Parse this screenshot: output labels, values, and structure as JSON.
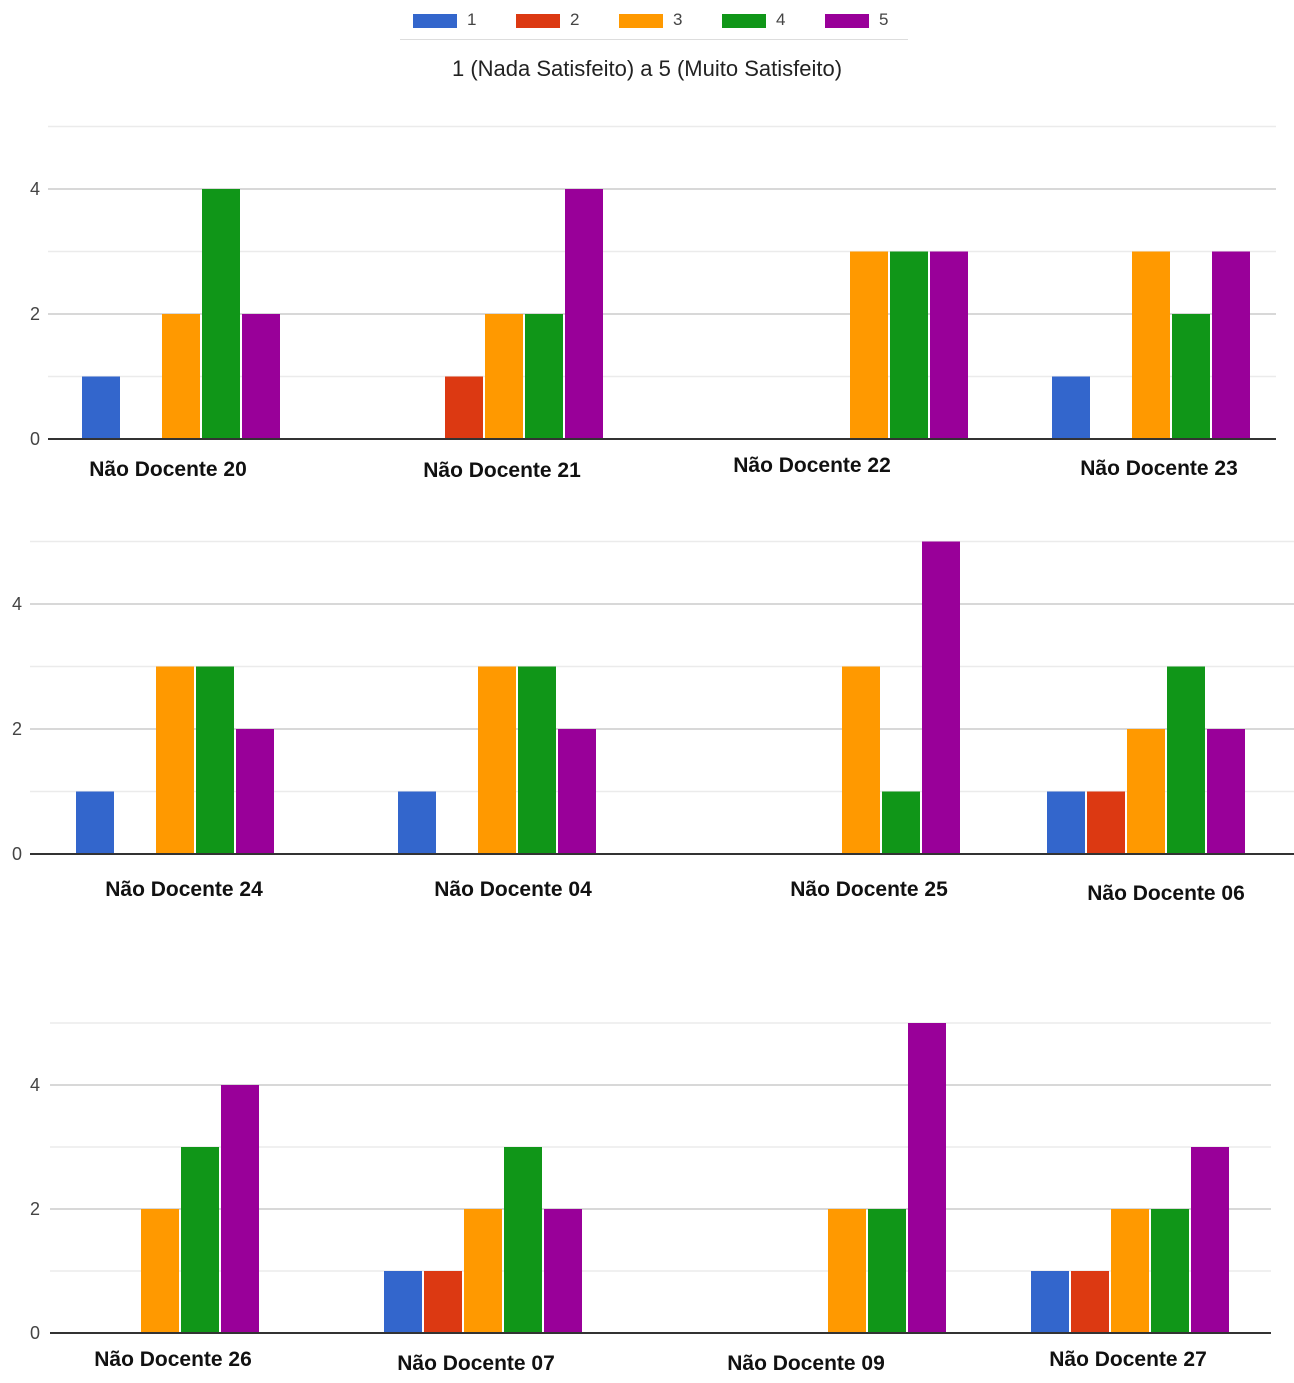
{
  "legend": {
    "items": [
      {
        "label": "1",
        "color": "#3366cc"
      },
      {
        "label": "2",
        "color": "#dc3912"
      },
      {
        "label": "3",
        "color": "#ff9900"
      },
      {
        "label": "4",
        "color": "#109618"
      },
      {
        "label": "5",
        "color": "#990099"
      }
    ]
  },
  "subtitle": "1 (Nada Satisfeito) a 5 (Muito Satisfeito)",
  "chart_data": [
    {
      "type": "bar",
      "series_names": [
        "1",
        "2",
        "3",
        "4",
        "5"
      ],
      "colors": [
        "#3366cc",
        "#dc3912",
        "#ff9900",
        "#109618",
        "#990099"
      ],
      "yticks": [
        "0",
        "2",
        "4"
      ],
      "ylim": [
        0,
        5
      ],
      "groups": [
        {
          "label": "Não Docente 20",
          "values": [
            1,
            0,
            2,
            4,
            2
          ]
        },
        {
          "label": "Não Docente 21",
          "values": [
            0,
            1,
            2,
            2,
            4
          ]
        },
        {
          "label": "Não Docente 22",
          "values": [
            0,
            0,
            3,
            3,
            3
          ]
        },
        {
          "label": "Não Docente 23",
          "values": [
            1,
            0,
            3,
            2,
            3
          ]
        }
      ]
    },
    {
      "type": "bar",
      "series_names": [
        "1",
        "2",
        "3",
        "4",
        "5"
      ],
      "colors": [
        "#3366cc",
        "#dc3912",
        "#ff9900",
        "#109618",
        "#990099"
      ],
      "yticks": [
        "0",
        "2",
        "4"
      ],
      "ylim": [
        0,
        5
      ],
      "groups": [
        {
          "label": "Não Docente 24",
          "values": [
            1,
            0,
            3,
            3,
            2
          ]
        },
        {
          "label": "Não Docente 04",
          "values": [
            1,
            0,
            3,
            3,
            2
          ]
        },
        {
          "label": "Não Docente 25",
          "values": [
            0,
            0,
            3,
            1,
            5
          ]
        },
        {
          "label": "Não Docente 06",
          "values": [
            1,
            1,
            2,
            3,
            2
          ]
        }
      ]
    },
    {
      "type": "bar",
      "series_names": [
        "1",
        "2",
        "3",
        "4",
        "5"
      ],
      "colors": [
        "#3366cc",
        "#dc3912",
        "#ff9900",
        "#109618",
        "#990099"
      ],
      "yticks": [
        "0",
        "2",
        "4"
      ],
      "ylim": [
        0,
        5
      ],
      "groups": [
        {
          "label": "Não Docente 26",
          "values": [
            0,
            0,
            2,
            3,
            4
          ]
        },
        {
          "label": "Não Docente 07",
          "values": [
            1,
            1,
            2,
            3,
            2
          ]
        },
        {
          "label": "Não Docente 09",
          "values": [
            0,
            0,
            2,
            2,
            5
          ]
        },
        {
          "label": "Não Docente 27",
          "values": [
            1,
            1,
            2,
            2,
            3
          ]
        }
      ]
    }
  ]
}
